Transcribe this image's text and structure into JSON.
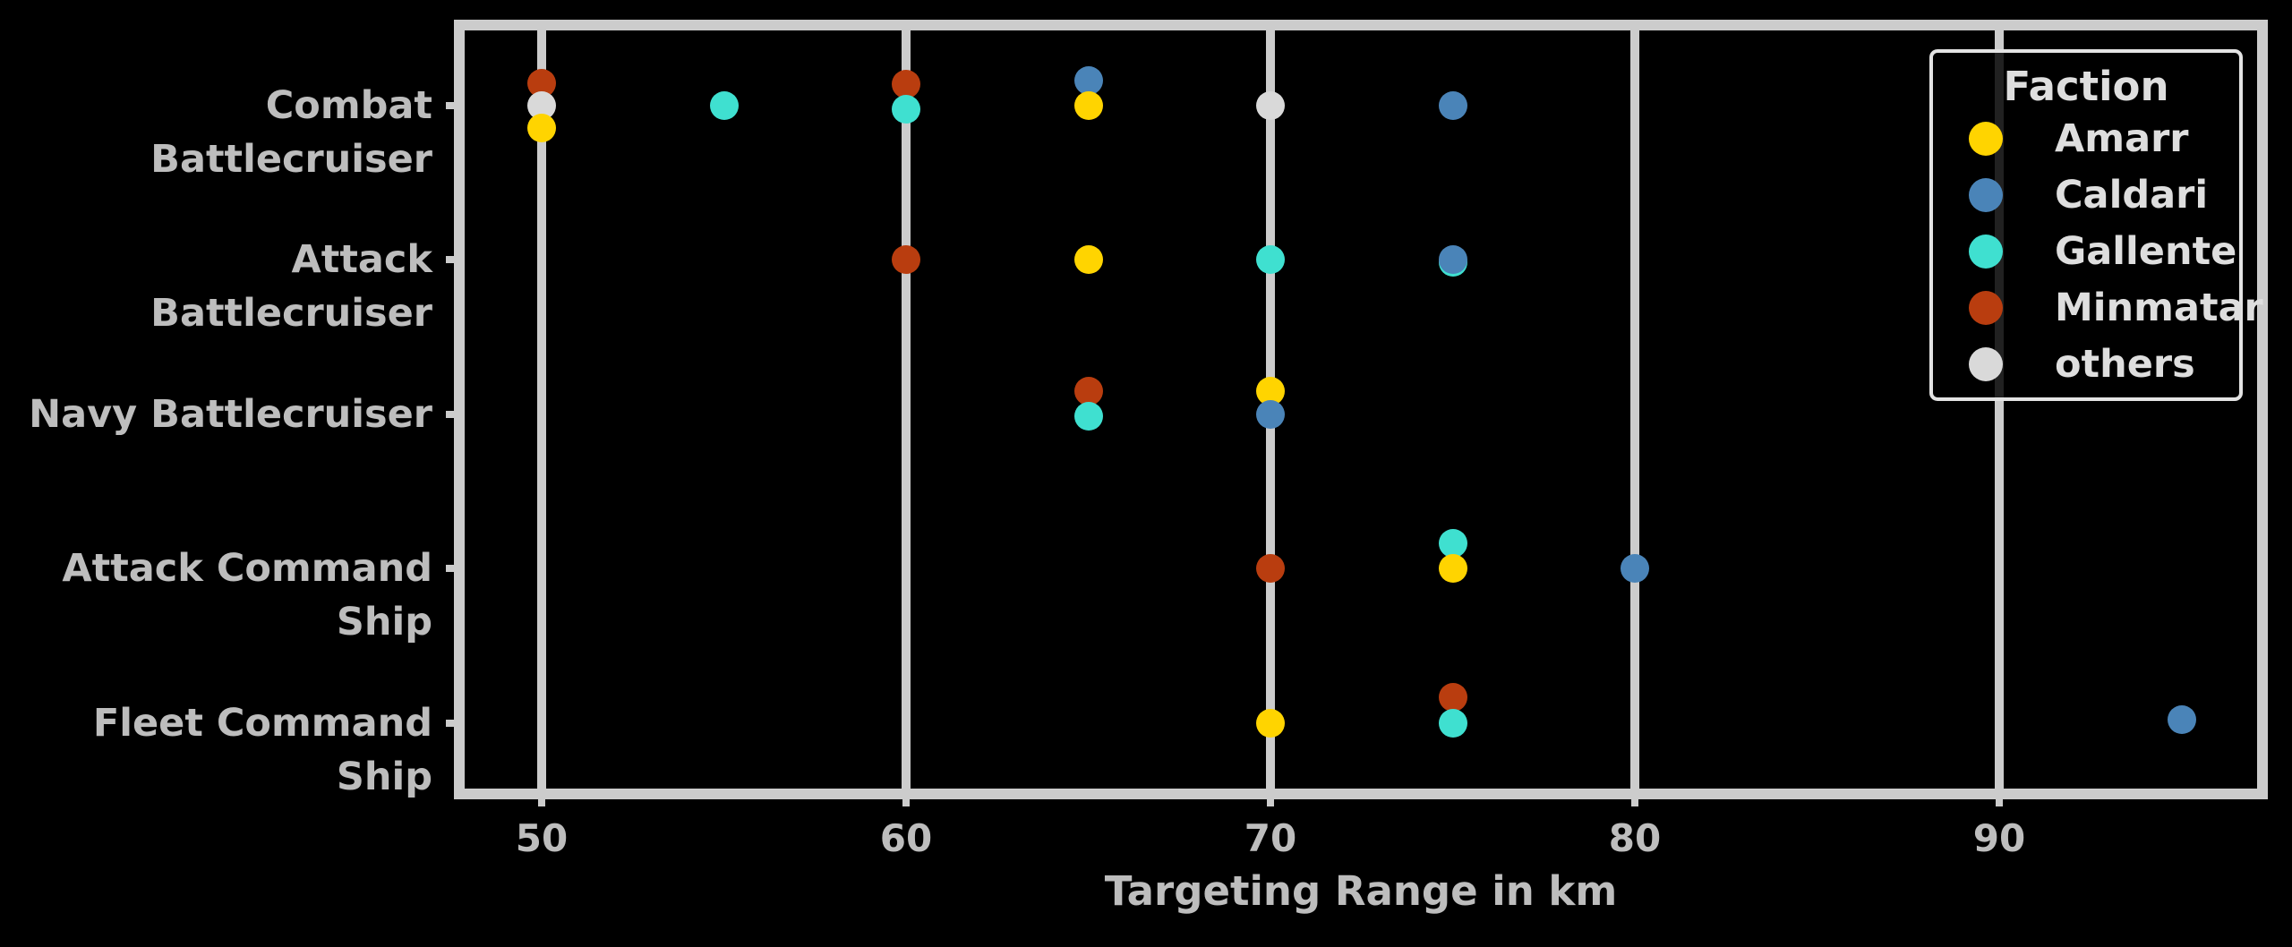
{
  "chart_data": {
    "type": "scatter",
    "title": "",
    "xlabel": "Targeting Range in km",
    "ylabel": "",
    "x_ticks": [
      50,
      60,
      70,
      80,
      90
    ],
    "x_axis_range_km": [
      47.7,
      97.2
    ],
    "grid": "vertical-x-gridlines",
    "legend_position": "upper right",
    "background_color": "#000000",
    "grid_color": "#CCCCCC",
    "text_color": "#BDBDBD",
    "categories": [
      "Combat Battlecruiser",
      "Attack Battlecruiser",
      "Navy Battlecruiser",
      "Attack Command Ship",
      "Fleet Command Ship"
    ],
    "legend": {
      "title": "Faction",
      "entries": [
        {
          "label": "Amarr",
          "color": "#FFD400"
        },
        {
          "label": "Caldari",
          "color": "#4A84B8"
        },
        {
          "label": "Gallente",
          "color": "#3FE0D0"
        },
        {
          "label": "Minmatar",
          "color": "#B93D0F"
        },
        {
          "label": "others",
          "color": "#D9D9D9"
        }
      ]
    },
    "points": [
      {
        "category": "Combat Battlecruiser",
        "faction": "Minmatar",
        "x": 50,
        "dy": -25
      },
      {
        "category": "Combat Battlecruiser",
        "faction": "others",
        "x": 50,
        "dy": 0
      },
      {
        "category": "Combat Battlecruiser",
        "faction": "Amarr",
        "x": 50,
        "dy": 25
      },
      {
        "category": "Combat Battlecruiser",
        "faction": "Gallente",
        "x": 55,
        "dy": 0
      },
      {
        "category": "Combat Battlecruiser",
        "faction": "Minmatar",
        "x": 60,
        "dy": -24
      },
      {
        "category": "Combat Battlecruiser",
        "faction": "Gallente",
        "x": 60,
        "dy": 4
      },
      {
        "category": "Combat Battlecruiser",
        "faction": "Caldari",
        "x": 65,
        "dy": -28
      },
      {
        "category": "Combat Battlecruiser",
        "faction": "Amarr",
        "x": 65,
        "dy": 0
      },
      {
        "category": "Combat Battlecruiser",
        "faction": "others",
        "x": 70,
        "dy": 0
      },
      {
        "category": "Combat Battlecruiser",
        "faction": "Caldari",
        "x": 75,
        "dy": 0
      },
      {
        "category": "Attack Battlecruiser",
        "faction": "Minmatar",
        "x": 60,
        "dy": 0
      },
      {
        "category": "Attack Battlecruiser",
        "faction": "Amarr",
        "x": 65,
        "dy": 0
      },
      {
        "category": "Attack Battlecruiser",
        "faction": "Gallente",
        "x": 70,
        "dy": 0
      },
      {
        "category": "Attack Battlecruiser",
        "faction": "Gallente",
        "x": 75,
        "dy": 3
      },
      {
        "category": "Attack Battlecruiser",
        "faction": "Caldari",
        "x": 75,
        "dy": 0
      },
      {
        "category": "Navy Battlecruiser",
        "faction": "Minmatar",
        "x": 65,
        "dy": -26
      },
      {
        "category": "Navy Battlecruiser",
        "faction": "Gallente",
        "x": 65,
        "dy": 2
      },
      {
        "category": "Navy Battlecruiser",
        "faction": "Amarr",
        "x": 70,
        "dy": -26
      },
      {
        "category": "Navy Battlecruiser",
        "faction": "Caldari",
        "x": 70,
        "dy": 0
      },
      {
        "category": "Attack Command Ship",
        "faction": "Minmatar",
        "x": 70,
        "dy": 0
      },
      {
        "category": "Attack Command Ship",
        "faction": "Gallente",
        "x": 75,
        "dy": -28
      },
      {
        "category": "Attack Command Ship",
        "faction": "Amarr",
        "x": 75,
        "dy": 0
      },
      {
        "category": "Attack Command Ship",
        "faction": "Caldari",
        "x": 80,
        "dy": 0
      },
      {
        "category": "Fleet Command Ship",
        "faction": "Amarr",
        "x": 70,
        "dy": 0
      },
      {
        "category": "Fleet Command Ship",
        "faction": "Minmatar",
        "x": 75,
        "dy": -29
      },
      {
        "category": "Fleet Command Ship",
        "faction": "Gallente",
        "x": 75,
        "dy": 0
      },
      {
        "category": "Fleet Command Ship",
        "faction": "Caldari",
        "x": 95,
        "dy": -4
      }
    ]
  }
}
